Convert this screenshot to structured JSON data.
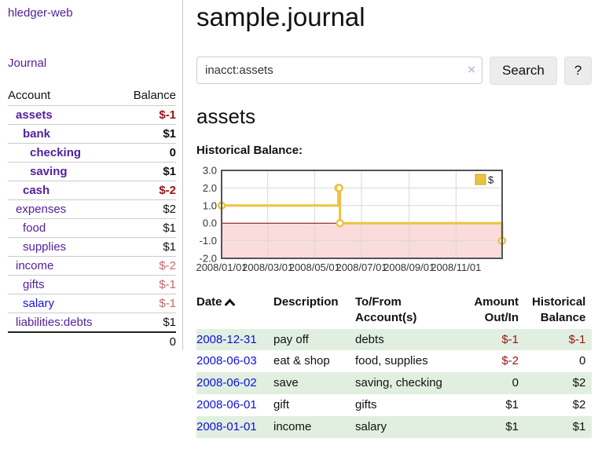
{
  "sidebar": {
    "brand": "hledger-web",
    "nav": {
      "journal": "Journal"
    },
    "accounts_table": {
      "headers": {
        "account": "Account",
        "balance": "Balance"
      },
      "rows": [
        {
          "name": "assets",
          "level": 0,
          "bold": true,
          "balance": "$-1",
          "neg": "strong"
        },
        {
          "name": "bank",
          "level": 1,
          "bold": true,
          "balance": "$1"
        },
        {
          "name": "checking",
          "level": 2,
          "bold": true,
          "balance": "0"
        },
        {
          "name": "saving",
          "level": 2,
          "bold": true,
          "balance": "$1"
        },
        {
          "name": "cash",
          "level": 1,
          "bold": true,
          "balance": "$-2",
          "neg": "strong"
        },
        {
          "name": "expenses",
          "level": 0,
          "bold": false,
          "balance": "$2"
        },
        {
          "name": "food",
          "level": 1,
          "bold": false,
          "balance": "$1"
        },
        {
          "name": "supplies",
          "level": 1,
          "bold": false,
          "balance": "$1"
        },
        {
          "name": "income",
          "level": 0,
          "bold": false,
          "balance": "$-2",
          "neg": "muted"
        },
        {
          "name": "gifts",
          "level": 1,
          "bold": false,
          "balance": "$-1",
          "neg": "muted"
        },
        {
          "name": "salary",
          "level": 1,
          "bold": false,
          "balance": "$-1",
          "neg": "muted",
          "link": "blue"
        },
        {
          "name": "liabilities:debts",
          "level": 0,
          "bold": false,
          "balance": "$1"
        }
      ],
      "total": "0"
    }
  },
  "main": {
    "title": "sample.journal",
    "search": {
      "value": "inacct:assets",
      "clear_icon": "×",
      "button_label": "Search",
      "help_label": "?"
    },
    "account_heading": "assets",
    "chart_label": "Historical Balance:",
    "register": {
      "headers": {
        "date": "Date",
        "description": "Description",
        "accounts": "To/From Account(s)",
        "amount": "Amount Out/In",
        "balance": "Historical Balance"
      },
      "rows": [
        {
          "date": "2008-12-31",
          "description": "pay off",
          "accounts": "debts",
          "amount": "$-1",
          "amount_neg": true,
          "balance": "$-1",
          "balance_neg": true
        },
        {
          "date": "2008-06-03",
          "description": "eat & shop",
          "accounts": "food, supplies",
          "amount": "$-2",
          "amount_neg": true,
          "balance": "0",
          "balance_neg": false
        },
        {
          "date": "2008-06-02",
          "description": "save",
          "accounts": "saving, checking",
          "amount": "0",
          "amount_neg": false,
          "balance": "$2",
          "balance_neg": false
        },
        {
          "date": "2008-06-01",
          "description": "gift",
          "accounts": "gifts",
          "amount": "$1",
          "amount_neg": false,
          "balance": "$2",
          "balance_neg": false
        },
        {
          "date": "2008-01-01",
          "description": "income",
          "accounts": "salary",
          "amount": "$1",
          "amount_neg": false,
          "balance": "$1",
          "balance_neg": false
        }
      ]
    }
  },
  "chart_data": {
    "type": "line",
    "step": true,
    "title": "Historical Balance:",
    "legend": {
      "label": "$",
      "position": "top-right"
    },
    "series": [
      {
        "name": "$",
        "color": "#edc240",
        "points": [
          [
            "2008-01-01",
            1
          ],
          [
            "2008-06-01",
            2
          ],
          [
            "2008-06-02",
            2
          ],
          [
            "2008-06-03",
            0
          ],
          [
            "2008-12-31",
            -1
          ]
        ]
      }
    ],
    "xrange": [
      "2008-01-01",
      "2008-12-31"
    ],
    "ylim": [
      -2,
      3
    ],
    "yticks": [
      3.0,
      2.0,
      1.0,
      0.0,
      -1.0,
      -2.0
    ],
    "xticks": [
      "2008/01/01",
      "2008/03/01",
      "2008/05/01",
      "2008/07/01",
      "2008/09/01",
      "2008/11/01"
    ],
    "grid": true,
    "negative_region_color": "#fbdcdc",
    "zero_line_color": "#8b0000",
    "grid_color": "#d8d8d8",
    "border_color": "#545454",
    "legend_swatch_stroke": "#c3a033"
  },
  "colors": {
    "accent_purple": "#54209c",
    "link_blue": "#0f0fe0",
    "negative_strong": "#9b1313",
    "negative_muted": "#c26a6a",
    "row_stripe_green": "#e1efe0",
    "chart_line": "#edc240"
  }
}
